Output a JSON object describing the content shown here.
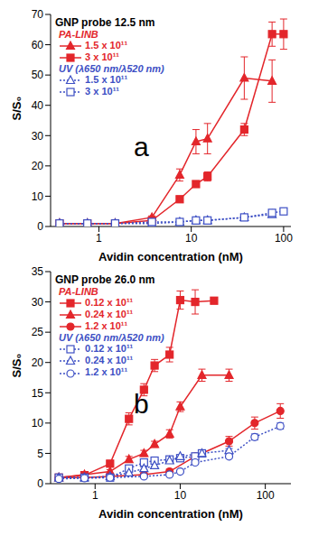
{
  "chart_data": [
    {
      "type": "line",
      "title": "GNP probe 12.5 nm",
      "annotation": "a",
      "x_label": "Avidin concentration (nM)",
      "y_label": "S/S₀",
      "log": "x",
      "xlim": [
        0.3,
        120
      ],
      "xticks": [
        1,
        10,
        100
      ],
      "ylim": [
        0,
        70
      ],
      "yticks": [
        0,
        10,
        20,
        30,
        40,
        50,
        60,
        70
      ],
      "legend": "upper left",
      "legend_groups": [
        {
          "title": "PA-LINB",
          "color": "#e3262b",
          "series": [
            {
              "name": "1.5 x 10¹¹",
              "color": "#e3262b",
              "marker": "triangle",
              "line_style": "solid",
              "x": [
                0.375,
                0.75,
                1.5,
                3.75,
                7.5,
                11.25,
                15,
                37.5,
                75
              ],
              "values": [
                1,
                1,
                1,
                3,
                17,
                28,
                29,
                49,
                48
              ],
              "errors": [
                0,
                0,
                0,
                0.5,
                2,
                4,
                5,
                7,
                7
              ]
            },
            {
              "name": "3 x 10¹¹",
              "color": "#e3262b",
              "marker": "square",
              "line_style": "solid",
              "x": [
                0.375,
                0.75,
                1.5,
                3.75,
                7.5,
                11.25,
                15,
                37.5,
                75,
                100
              ],
              "values": [
                1,
                1,
                1,
                2,
                9,
                14,
                16.5,
                32,
                63.5,
                63.5
              ],
              "errors": [
                0,
                0,
                0,
                0.5,
                1,
                1,
                1.5,
                2,
                4,
                5
              ]
            }
          ]
        },
        {
          "title": "UV (λ650 nm/λ520 nm)",
          "color": "#3d4fc4",
          "series": [
            {
              "name": "1.5 x 10¹¹",
              "color": "#3d4fc4",
              "marker": "triangle-open",
              "line_style": "dotted",
              "x": [
                0.375,
                0.75,
                1.5,
                3.75,
                7.5,
                11.25,
                15,
                37.5,
                75
              ],
              "values": [
                1,
                1,
                1,
                1,
                1.5,
                2,
                2,
                3,
                4
              ],
              "errors": [
                0,
                0,
                0,
                0,
                0.3,
                0.3,
                0.3,
                0.5,
                0.5
              ]
            },
            {
              "name": "3 x 10¹¹",
              "color": "#3d4fc4",
              "marker": "square-open",
              "line_style": "dotted",
              "x": [
                0.375,
                0.75,
                1.5,
                3.75,
                7.5,
                11.25,
                15,
                37.5,
                75,
                100
              ],
              "values": [
                1,
                1,
                1,
                1.5,
                1.5,
                2,
                2,
                3,
                4.5,
                5
              ],
              "errors": [
                0,
                0,
                0,
                0.3,
                0.3,
                0.3,
                0.3,
                0.5,
                0.5,
                0.5
              ]
            }
          ]
        }
      ]
    },
    {
      "type": "line",
      "title": "GNP probe 26.0 nm",
      "annotation": "b",
      "x_label": "Avidin concentration (nM)",
      "y_label": "S/S₀",
      "log": "x",
      "xlim": [
        0.3,
        200
      ],
      "xticks": [
        1,
        10,
        100
      ],
      "ylim": [
        0,
        35
      ],
      "yticks": [
        0,
        5,
        10,
        15,
        20,
        25,
        30,
        35
      ],
      "legend": "upper left",
      "legend_groups": [
        {
          "title": "PA-LINB",
          "color": "#e3262b",
          "series": [
            {
              "name": "0.12 x 10¹¹",
              "color": "#e3262b",
              "marker": "square",
              "line_style": "solid",
              "x": [
                0.375,
                0.75,
                1.5,
                2.5,
                3.75,
                5,
                7.5,
                10,
                15,
                25
              ],
              "values": [
                1,
                1.4,
                3.3,
                10.7,
                15.5,
                19.5,
                21.3,
                30.3,
                30,
                30.2
              ],
              "errors": [
                0,
                0.3,
                0.5,
                1,
                1,
                1,
                1.2,
                1.5,
                2,
                0.5
              ]
            },
            {
              "name": "0.24 x 10¹¹",
              "color": "#e3262b",
              "marker": "triangle",
              "line_style": "solid",
              "x": [
                0.375,
                0.75,
                1.5,
                2.5,
                3.75,
                5,
                7.5,
                10,
                18,
                37.5
              ],
              "values": [
                1,
                1.5,
                2,
                4,
                5,
                6.5,
                8.2,
                12.7,
                17.9,
                17.9
              ],
              "errors": [
                0,
                0.3,
                0.3,
                0.5,
                0.5,
                0.5,
                0.7,
                0.8,
                1,
                1
              ]
            },
            {
              "name": "1.2 x 10¹¹",
              "color": "#e3262b",
              "marker": "circle",
              "line_style": "solid",
              "x": [
                0.375,
                0.75,
                1.5,
                3.75,
                7.5,
                15,
                37.5,
                75,
                150
              ],
              "values": [
                1,
                1,
                1.2,
                1.5,
                2,
                4.5,
                7,
                10,
                12
              ],
              "errors": [
                0,
                0,
                0.2,
                0.3,
                0.4,
                0.5,
                0.8,
                1,
                1.2
              ]
            }
          ]
        },
        {
          "title": "UV (λ650 nm/λ520 nm)",
          "color": "#3d4fc4",
          "series": [
            {
              "name": "0.12 x 10¹¹",
              "color": "#3d4fc4",
              "marker": "square-open",
              "line_style": "dotted",
              "x": [
                0.375,
                0.75,
                1.5,
                2.5,
                3.75,
                5,
                7.5,
                10,
                15,
                18
              ],
              "values": [
                1,
                1,
                1,
                2.5,
                3.5,
                3.8,
                4,
                4.2,
                4.5,
                5
              ],
              "errors": [
                0,
                0,
                0,
                0.2,
                0.2,
                0.2,
                0.2,
                0.2,
                0.3,
                0.3
              ]
            },
            {
              "name": "0.24 x 10¹¹",
              "color": "#3d4fc4",
              "marker": "triangle-open",
              "line_style": "dotted",
              "x": [
                0.375,
                0.75,
                1.5,
                2.5,
                3.75,
                5,
                7.5,
                10,
                18,
                37.5
              ],
              "values": [
                1,
                1,
                1.2,
                1.8,
                2.5,
                3,
                3.8,
                4.5,
                5,
                5.5
              ],
              "errors": [
                0,
                0,
                0,
                0.2,
                0.2,
                0.2,
                0.2,
                0.3,
                0.3,
                0.3
              ]
            },
            {
              "name": "1.2 x 10¹¹",
              "color": "#3d4fc4",
              "marker": "circle-open",
              "line_style": "dotted",
              "x": [
                0.375,
                0.75,
                1.5,
                3.75,
                7.5,
                10,
                15,
                37.5,
                75,
                150
              ],
              "values": [
                0.8,
                0.9,
                1,
                1.2,
                1.5,
                2,
                3.5,
                4.5,
                7.7,
                9.5
              ],
              "errors": [
                0,
                0,
                0,
                0.2,
                0.2,
                0.2,
                0.3,
                0.3,
                0.5,
                0.5
              ]
            }
          ]
        }
      ]
    }
  ]
}
